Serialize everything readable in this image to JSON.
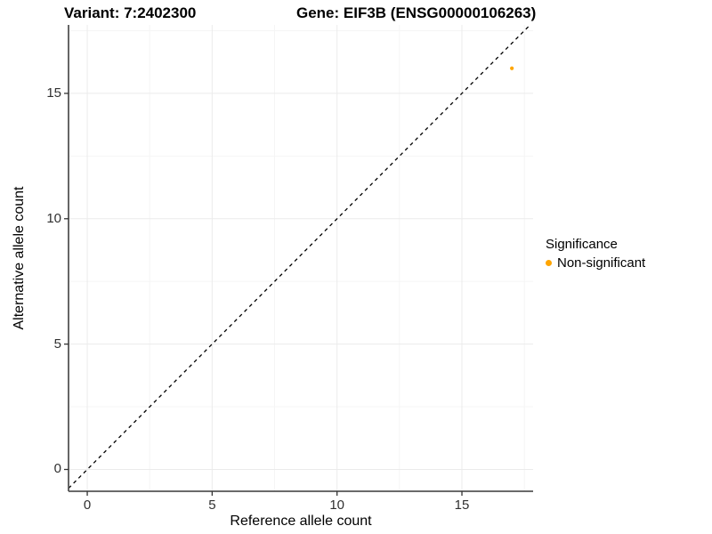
{
  "title": {
    "variant": "Variant: 7:2402300",
    "gene": "Gene: EIF3B (ENSG00000106263)"
  },
  "axes": {
    "x_label": "Reference allele count",
    "y_label": "Alternative allele count"
  },
  "legend": {
    "title": "Significance",
    "items": [
      {
        "label": "Non-significant",
        "color": "#FFA500"
      }
    ]
  },
  "colors": {
    "point": "#FFA500",
    "grid_major": "#EBEBEB",
    "grid_minor": "#F5F5F5",
    "axis_line": "#555555",
    "tick_mark": "#333333",
    "tick_text": "#303030",
    "reference_line": "#000000"
  },
  "chart_data": {
    "type": "scatter",
    "title": "Variant: 7:2402300    Gene: EIF3B (ENSG00000106263)",
    "xlabel": "Reference allele count",
    "ylabel": "Alternative allele count",
    "series": [
      {
        "name": "Non-significant",
        "color": "#FFA500",
        "points": [
          {
            "x": 17,
            "y": 16
          }
        ]
      }
    ],
    "reference_line": {
      "type": "identity",
      "slope": 1,
      "intercept": 0,
      "style": "dashed",
      "color": "#000000"
    },
    "x_ticks": [
      0,
      5,
      10,
      15
    ],
    "y_ticks": [
      0,
      5,
      10,
      15
    ],
    "x_minor_ticks": [
      2.5,
      7.5,
      12.5,
      17.5
    ],
    "y_minor_ticks": [
      2.5,
      7.5,
      12.5,
      17.5
    ],
    "xlim": [
      -0.75,
      17.85
    ],
    "ylim": [
      -0.87,
      17.73
    ],
    "grid": true,
    "legend_title": "Significance",
    "legend_position": "right"
  }
}
